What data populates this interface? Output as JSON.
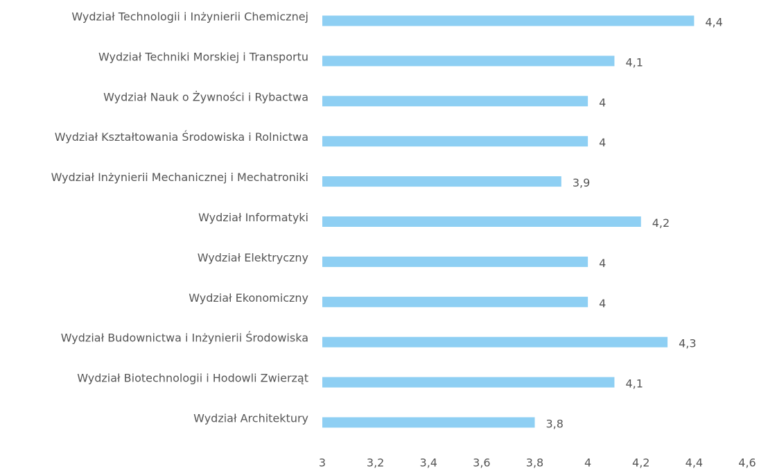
{
  "chart_data": {
    "type": "bar",
    "orientation": "horizontal",
    "categories": [
      "Wydział Technologii i Inżynierii Chemicznej",
      "Wydział Techniki Morskiej i Transportu",
      "Wydział Nauk o Żywności i Rybactwa",
      "Wydział Kształtowania Środowiska i Rolnictwa",
      "Wydział Inżynierii Mechanicznej i Mechatroniki",
      "Wydział Informatyki",
      "Wydział Elektryczny",
      "Wydział Ekonomiczny",
      "Wydział Budownictwa i Inżynierii Środowiska",
      "Wydział Biotechnologii i Hodowli Zwierząt",
      "Wydział Architektury"
    ],
    "values": [
      4.4,
      4.1,
      4,
      4,
      3.9,
      4.2,
      4,
      4,
      4.3,
      4.1,
      3.8
    ],
    "value_labels": [
      "4,4",
      "4,1",
      "4",
      "4",
      "3,9",
      "4,2",
      "4",
      "4",
      "4,3",
      "4,1",
      "3,8"
    ],
    "color": "#8ecff3",
    "xlim": [
      3,
      4.6
    ],
    "xticks": [
      3,
      {
        "value": 3.2,
        "label": "3,2"
      },
      {
        "value": 3.4,
        "label": "3,4"
      },
      {
        "value": 3.6,
        "label": "3,6"
      },
      {
        "value": 3.8,
        "label": "3,8"
      },
      4,
      {
        "value": 4.2,
        "label": "4,2"
      },
      {
        "value": 4.4,
        "label": "4,4"
      },
      {
        "value": 4.6,
        "label": "4,6"
      }
    ],
    "grid": false
  }
}
